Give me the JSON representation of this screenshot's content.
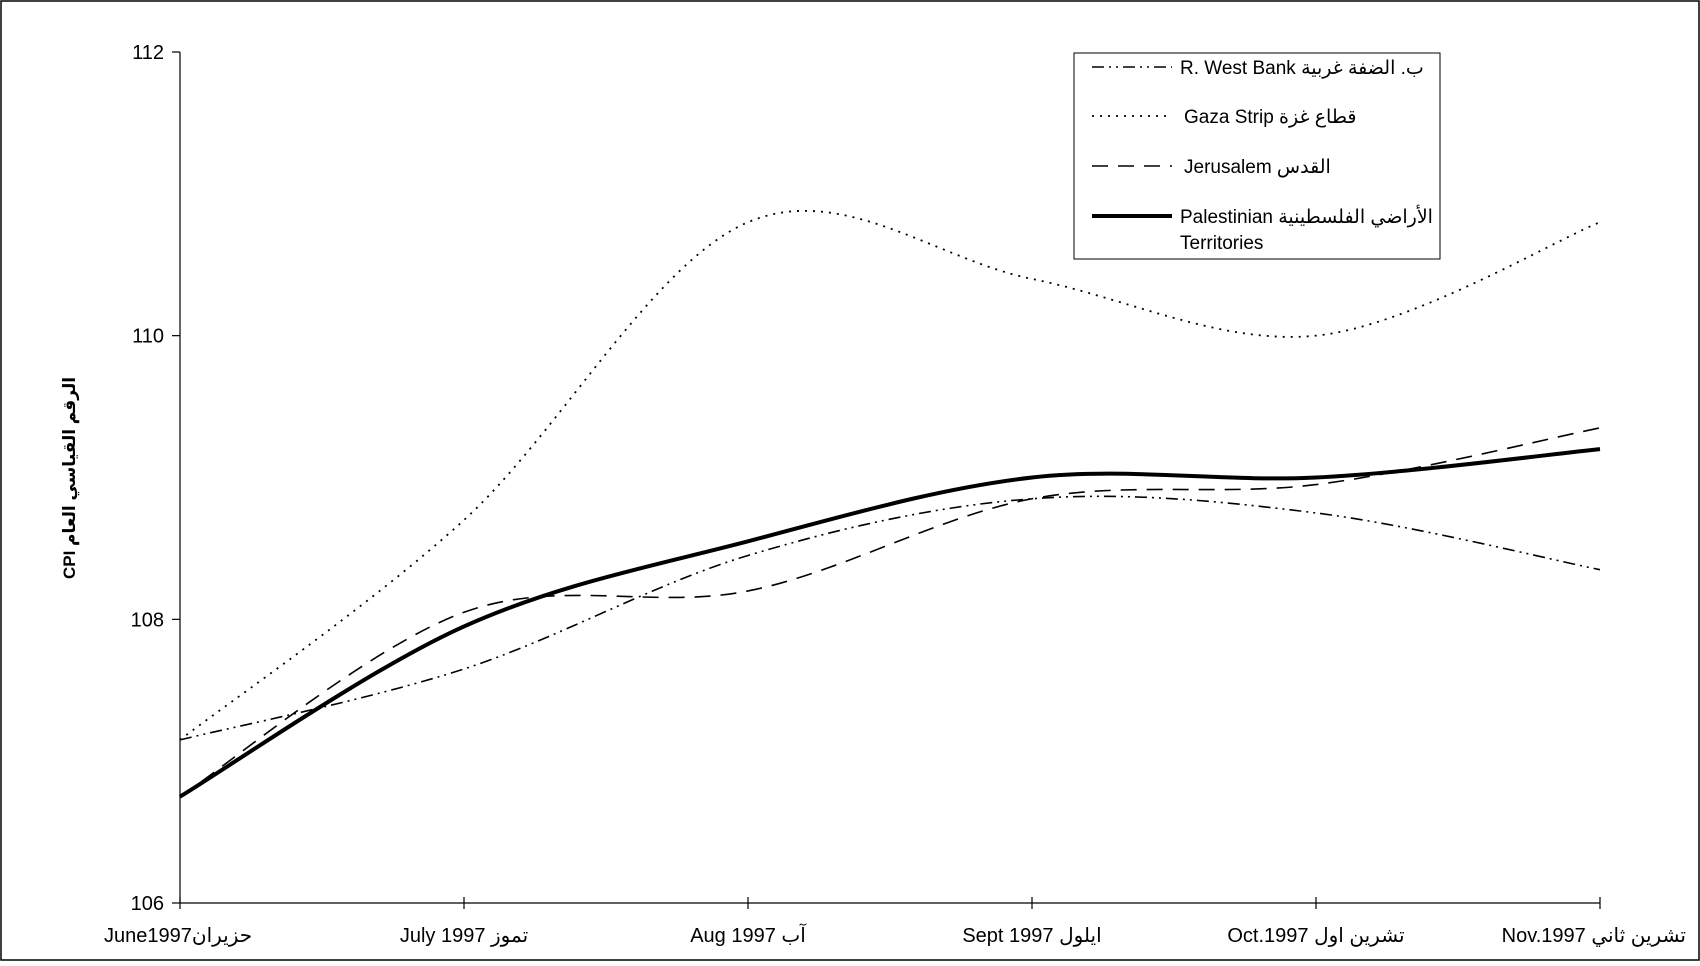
{
  "chart_data": {
    "type": "line",
    "ylabel": "CPI الرقم القياسي العام",
    "categories": [
      "June1997حزيران",
      "July 1997 تموز",
      "Aug 1997 آب",
      "Sept 1997 ايلول",
      "Oct.1997 تشرين اول",
      "Nov.1997 تشرين ثاني"
    ],
    "ylim": [
      106,
      112
    ],
    "yticks": [
      "106",
      "108",
      "110",
      "112"
    ],
    "grid": false,
    "legend_position": "top-right",
    "series": [
      {
        "name": "R. West Bank ب. الضفة غربية",
        "style": "dash-dot-dot",
        "values": [
          107.15,
          107.65,
          108.45,
          108.85,
          108.75,
          108.35
        ]
      },
      {
        "name": "Gaza Strip قطاع غزة",
        "style": "dotted",
        "values": [
          107.15,
          108.7,
          110.8,
          110.4,
          110.0,
          110.8
        ]
      },
      {
        "name": "Jerusalem القدس",
        "style": "dashed",
        "values": [
          106.75,
          108.05,
          108.2,
          108.85,
          108.95,
          109.35
        ]
      },
      {
        "name": "Palestinian الأراضي الفلسطينية Territories",
        "style": "solid-thick",
        "values": [
          106.75,
          107.95,
          108.55,
          109.0,
          109.0,
          109.2
        ]
      }
    ]
  }
}
